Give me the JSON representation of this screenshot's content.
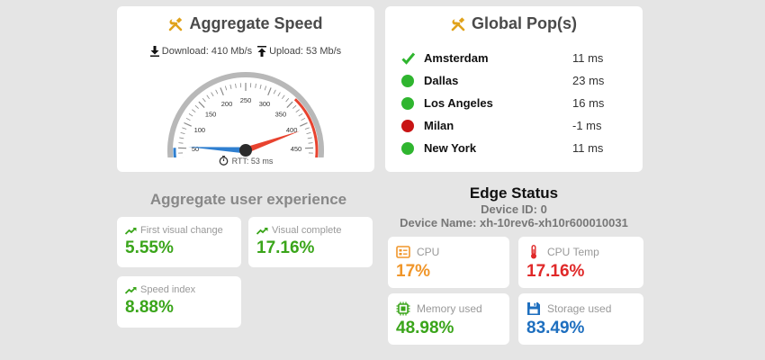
{
  "speed": {
    "title": "Aggregate Speed",
    "download_label": "Download: 410 Mb/s",
    "upload_label": "Upload: 53 Mb/s",
    "download_value": 410,
    "upload_value": 53,
    "rtt_label": "RTT: 53 ms",
    "gauge": {
      "min": 0,
      "max": 500,
      "ticks": [
        "0",
        "50",
        "100",
        "150",
        "200",
        "250",
        "300",
        "350",
        "400",
        "450",
        "500"
      ],
      "download_color": "#e8432f",
      "upload_color": "#2f7fd0",
      "red_arc_start": 350,
      "blue_arc_end": 50
    }
  },
  "pops": {
    "title": "Global Pop(s)",
    "items": [
      {
        "name": "Amsterdam",
        "latency": "11 ms",
        "status": "check"
      },
      {
        "name": "Dallas",
        "latency": "23 ms",
        "status": "green"
      },
      {
        "name": "Los Angeles",
        "latency": "16 ms",
        "status": "green"
      },
      {
        "name": "Milan",
        "latency": "-1 ms",
        "status": "red"
      },
      {
        "name": "New York",
        "latency": "11 ms",
        "status": "green"
      }
    ],
    "status_colors": {
      "green": "#2fb52f",
      "red": "#c81414",
      "check": "#2fb52f"
    }
  },
  "ux": {
    "title": "Aggregate user experience",
    "first_visual_change": {
      "label": "First visual change",
      "value": "5.55%"
    },
    "visual_complete": {
      "label": "Visual complete",
      "value": "17.16%"
    },
    "speed_index": {
      "label": "Speed index",
      "value": "8.88%"
    }
  },
  "edge": {
    "title": "Edge Status",
    "device_id": "Device ID: 0",
    "device_name": "Device Name: xh-10rev6-xh10r600010031",
    "cpu": {
      "label": "CPU",
      "value": "17%"
    },
    "cpu_temp": {
      "label": "CPU Temp",
      "value": "17.16%"
    },
    "memory": {
      "label": "Memory used",
      "value": "48.98%"
    },
    "storage": {
      "label": "Storage used",
      "value": "83.49%"
    }
  }
}
